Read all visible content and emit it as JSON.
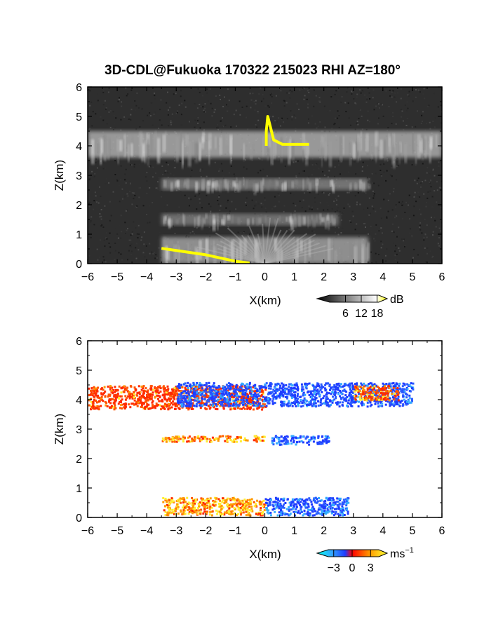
{
  "title": "3D-CDL@Fukuoka 170322 215023 RHI AZ=180°",
  "colors": {
    "reflectivity_bg": "#2e2e2e",
    "highlight": "#ffff00",
    "velocity_neg": "#1f3cff",
    "velocity_cyan": "#33ccff",
    "velocity_zero": "#ff2a00",
    "velocity_pos": "#ffff33"
  },
  "chart_data": [
    {
      "type": "heatmap",
      "name": "reflectivity",
      "xlabel": "X(km)",
      "ylabel": "Z(km)",
      "xlim": [
        -6,
        6
      ],
      "ylim": [
        0,
        6
      ],
      "x_ticks": [
        -6,
        -5,
        -4,
        -3,
        -2,
        -1,
        0,
        1,
        2,
        3,
        4,
        5,
        6
      ],
      "y_ticks": [
        0,
        1,
        2,
        3,
        4,
        5,
        6
      ],
      "colorbar": {
        "unit": "dB",
        "ticks": [
          6,
          12,
          18
        ],
        "range": [
          0,
          20
        ]
      },
      "layers": [
        {
          "x": [
            -6,
            6
          ],
          "z": [
            3.6,
            4.5
          ],
          "intensity": 0.7
        },
        {
          "x": [
            -3.5,
            3.5
          ],
          "z": [
            2.5,
            2.9
          ],
          "intensity": 0.35
        },
        {
          "x": [
            -3.5,
            2.5
          ],
          "z": [
            1.3,
            1.7
          ],
          "intensity": 0.3
        },
        {
          "x": [
            -3.5,
            3.5
          ],
          "z": [
            0,
            0.9
          ],
          "intensity": 0.6
        }
      ],
      "highlights": [
        {
          "x": [
            -3.5,
            -2.0,
            -1.0,
            -0.5
          ],
          "z": [
            0.52,
            0.3,
            0.08,
            0.02
          ]
        },
        {
          "x": [
            0.05,
            0.05,
            0.1,
            0.3,
            0.6,
            1.0,
            1.5
          ],
          "z": [
            4.0,
            4.5,
            5.0,
            4.2,
            4.05,
            4.05,
            4.05
          ]
        }
      ]
    },
    {
      "type": "heatmap",
      "name": "doppler velocity",
      "xlabel": "X(km)",
      "ylabel": "Z(km)",
      "xlim": [
        -6,
        6
      ],
      "ylim": [
        0,
        6
      ],
      "x_ticks": [
        -6,
        -5,
        -4,
        -3,
        -2,
        -1,
        0,
        1,
        2,
        3,
        4,
        5,
        6
      ],
      "y_ticks": [
        0,
        1,
        2,
        3,
        4,
        5,
        6
      ],
      "colorbar": {
        "unit": "ms",
        "unit_exp": "−1",
        "ticks": [
          -3,
          0,
          3
        ],
        "tick_labels": [
          "−3",
          "0",
          "3"
        ],
        "range": [
          -4,
          4
        ]
      },
      "layers": [
        {
          "x": [
            -6,
            0
          ],
          "z": [
            3.7,
            4.5
          ],
          "velocity": 1.0
        },
        {
          "x": [
            -3,
            5
          ],
          "z": [
            3.8,
            4.6
          ],
          "velocity": -3.0
        },
        {
          "x": [
            3,
            4.5
          ],
          "z": [
            4.0,
            4.5
          ],
          "velocity": 1.5
        },
        {
          "x": [
            -3.5,
            0
          ],
          "z": [
            2.6,
            2.8
          ],
          "velocity": 2.5
        },
        {
          "x": [
            0.2,
            2.2
          ],
          "z": [
            2.5,
            2.8
          ],
          "velocity": -2.5
        },
        {
          "x": [
            -3.5,
            0
          ],
          "z": [
            0.1,
            0.7
          ],
          "velocity": 2.5
        },
        {
          "x": [
            0,
            2.8
          ],
          "z": [
            0.1,
            0.7
          ],
          "velocity": -2.5
        }
      ]
    }
  ]
}
